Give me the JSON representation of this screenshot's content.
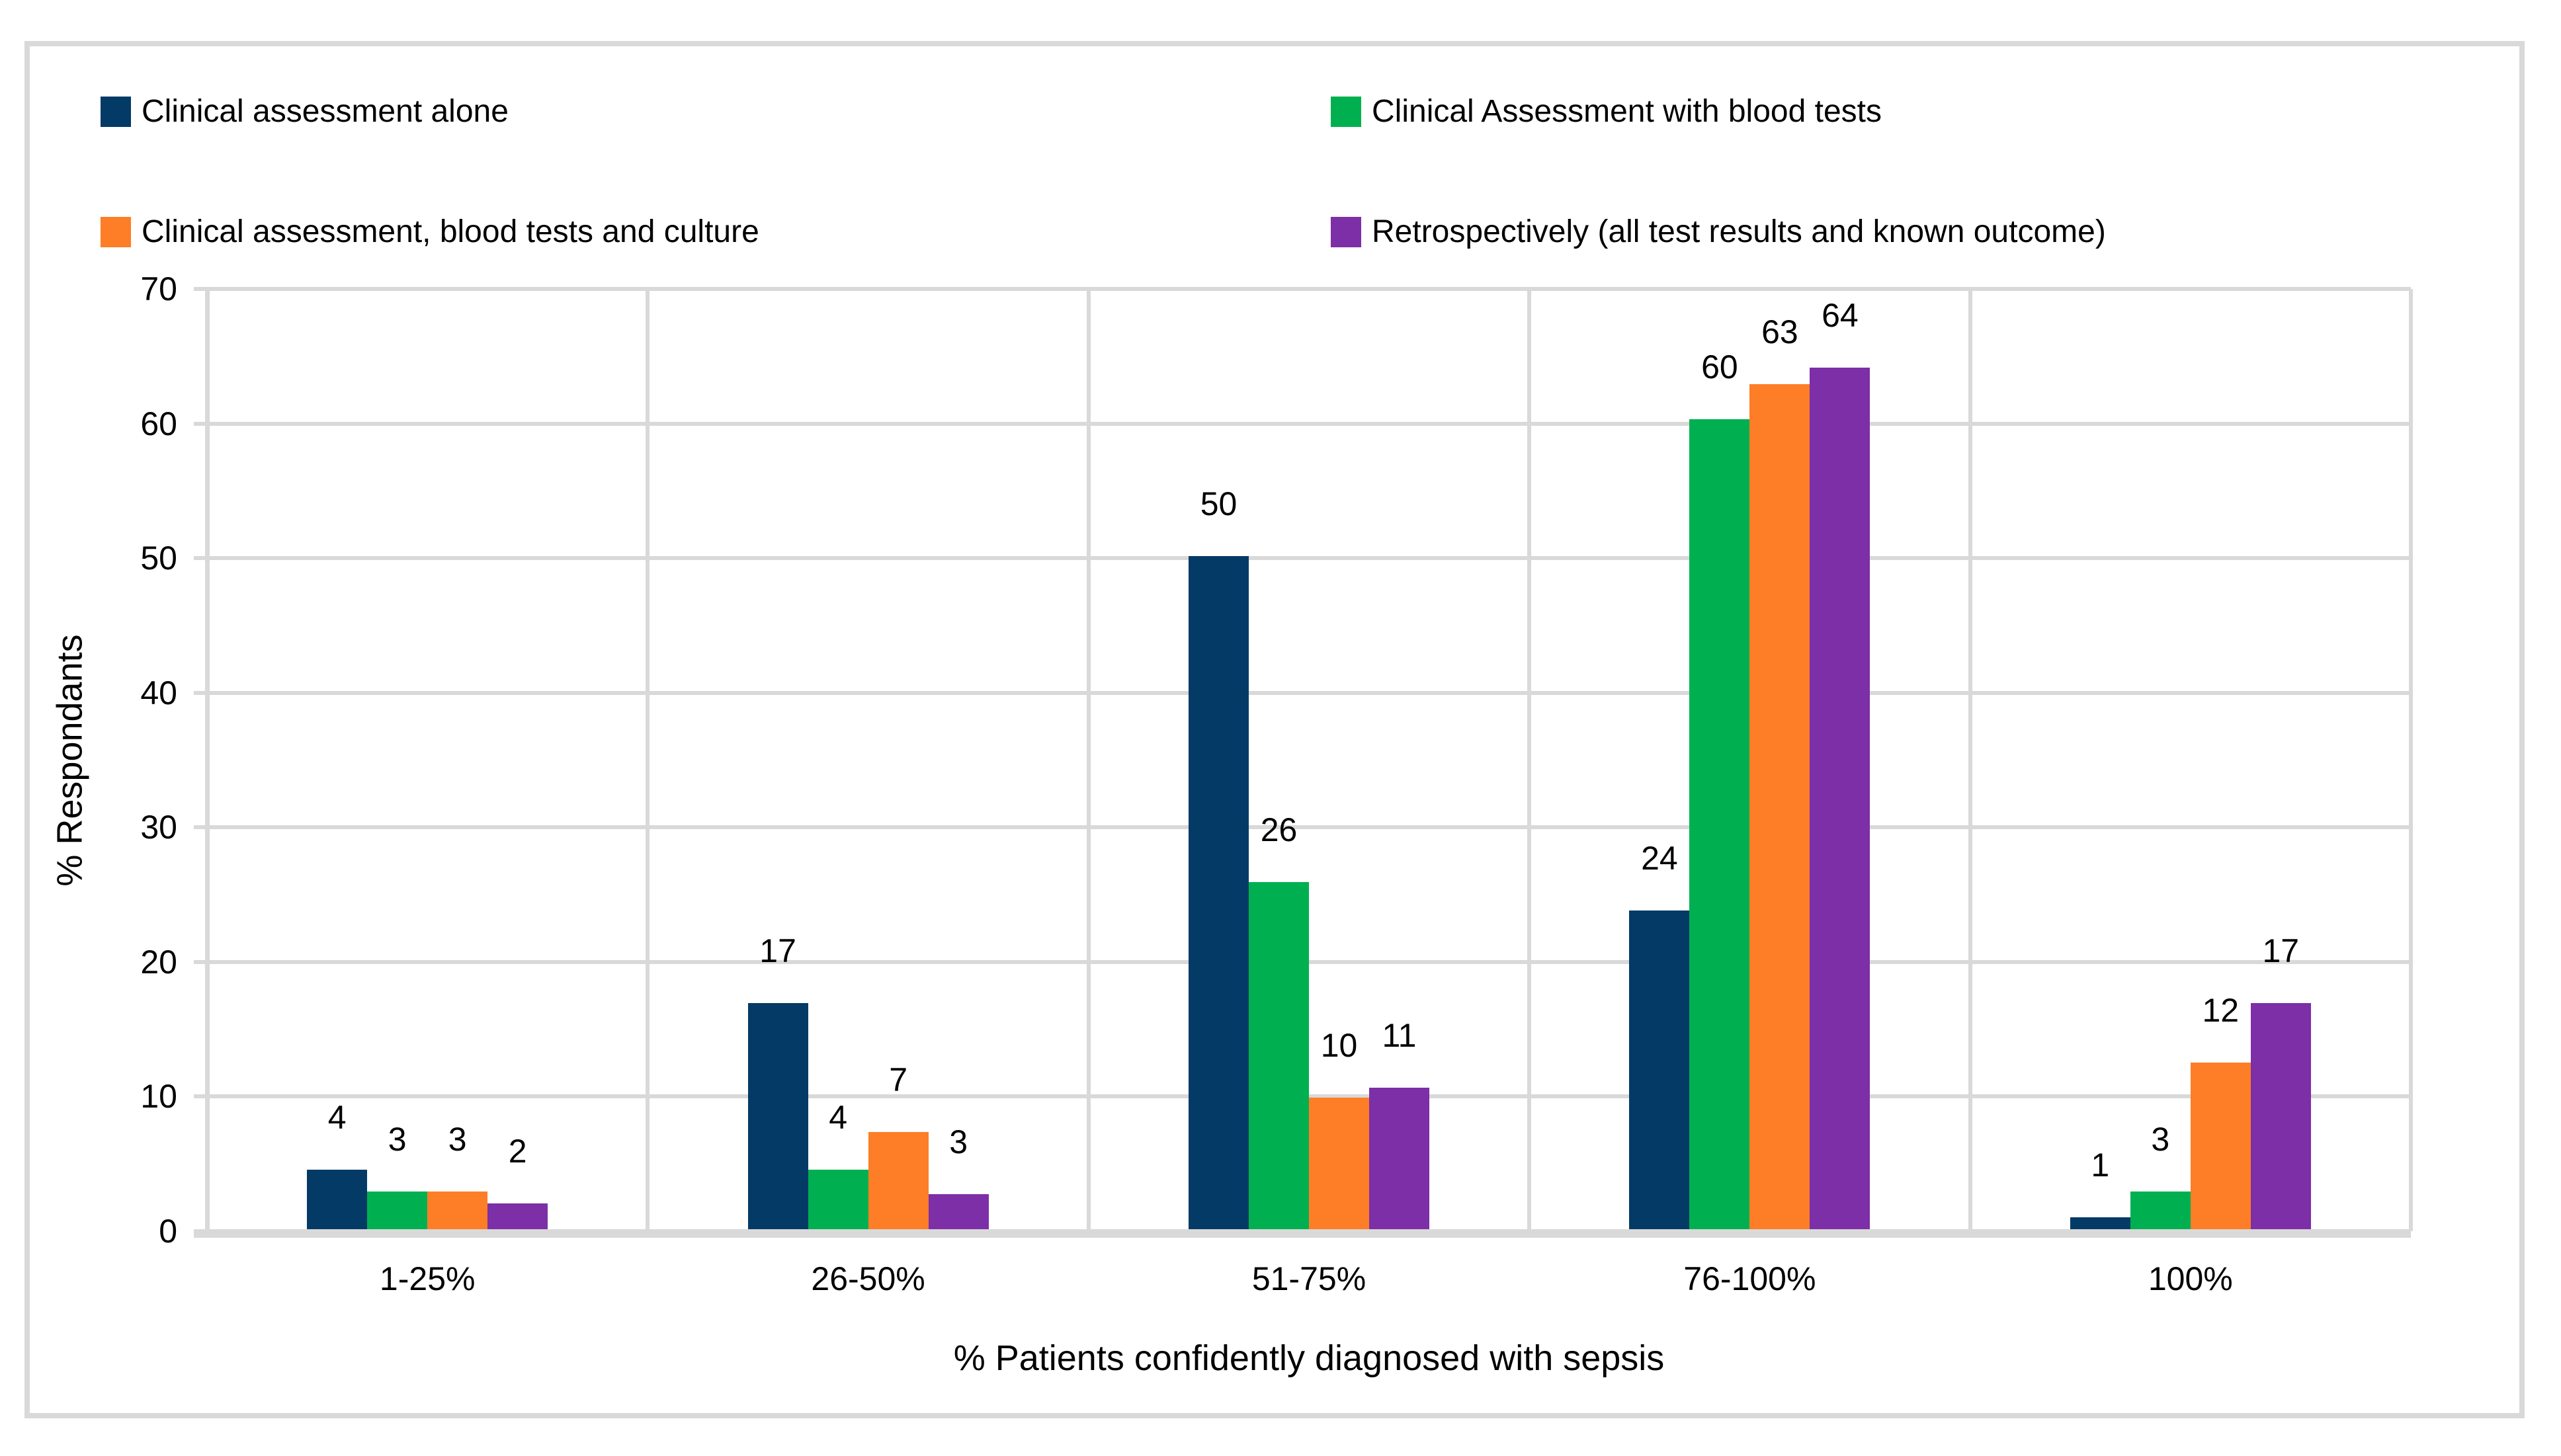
{
  "chart_data": {
    "type": "bar",
    "title": "",
    "xlabel": "% Patients confidently diagnosed with sepsis",
    "ylabel": "% Respondants",
    "ylim": [
      0,
      70
    ],
    "ytick_interval": 10,
    "yticks": [
      "0",
      "10",
      "20",
      "30",
      "40",
      "50",
      "60",
      "70"
    ],
    "grid": "horizontal gridlines every 10 units; vertical gridlines at category boundaries",
    "legend_position": "top, two columns, two rows, square markers",
    "categories": [
      "1-25%",
      "26-50%",
      "51-75%",
      "76-100%",
      "100%"
    ],
    "series": [
      {
        "name": "Clinical assessment alone",
        "color": "#043A66",
        "values": [
          4,
          17,
          50,
          24,
          1
        ],
        "bar_heights_estimated": [
          4.4,
          16.8,
          50.0,
          23.7,
          0.9
        ]
      },
      {
        "name": "Clinical Assessment with blood tests",
        "color": "#00B050",
        "values": [
          3,
          4,
          26,
          60,
          3
        ],
        "bar_heights_estimated": [
          2.8,
          4.4,
          25.8,
          60.2,
          2.8
        ]
      },
      {
        "name": "Clinical assessment, blood tests and culture",
        "color": "#FD7E27",
        "values": [
          3,
          7,
          10,
          63,
          12
        ],
        "bar_heights_estimated": [
          2.8,
          7.2,
          9.8,
          62.8,
          12.4
        ]
      },
      {
        "name": "Retrospectively (all test results and known outcome)",
        "color": "#7C2FA6",
        "values": [
          2,
          3,
          11,
          64,
          17
        ],
        "bar_heights_estimated": [
          1.9,
          2.6,
          10.5,
          64.0,
          16.8
        ]
      }
    ],
    "colors": {
      "grid": "#D9D9D9",
      "frame_border": "#D9D9D9",
      "text": "#000000",
      "background": "#FFFFFF"
    }
  }
}
